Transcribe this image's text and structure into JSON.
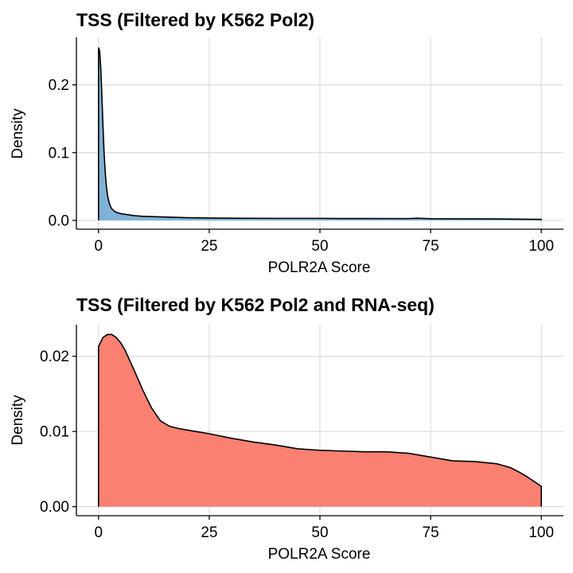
{
  "chart_data": [
    {
      "type": "area",
      "title": "TSS (Filtered by K562 Pol2)",
      "xlabel": "POLR2A Score",
      "ylabel": "Density",
      "xlim": [
        -5,
        105
      ],
      "ylim": [
        -0.013,
        0.27
      ],
      "xticks": [
        0,
        25,
        50,
        75,
        100
      ],
      "xtick_labels": [
        "0",
        "25",
        "50",
        "75",
        "100"
      ],
      "yticks": [
        0.0,
        0.1,
        0.2
      ],
      "ytick_labels": [
        "0.0",
        "0.1",
        "0.2"
      ],
      "grid": true,
      "fill_color": "#7FB2D6",
      "series": [
        {
          "x": [
            0,
            0.25,
            0.5,
            0.75,
            1,
            1.25,
            1.5,
            1.75,
            2,
            2.25,
            2.5,
            2.75,
            3,
            3.5,
            4,
            5,
            6,
            8,
            10,
            15,
            20,
            25,
            30,
            40,
            50,
            55,
            60,
            70,
            72,
            75,
            80,
            90,
            100
          ],
          "y": [
            0.255,
            0.25,
            0.225,
            0.185,
            0.14,
            0.1,
            0.072,
            0.052,
            0.038,
            0.03,
            0.024,
            0.02,
            0.017,
            0.014,
            0.012,
            0.01,
            0.009,
            0.007,
            0.006,
            0.005,
            0.004,
            0.0035,
            0.0032,
            0.003,
            0.003,
            0.0028,
            0.0028,
            0.0027,
            0.0032,
            0.0025,
            0.0023,
            0.0022,
            0.0015
          ]
        }
      ]
    },
    {
      "type": "area",
      "title": "TSS (Filtered by K562 Pol2 and RNA-seq)",
      "xlabel": "POLR2A Score",
      "ylabel": "Density",
      "xlim": [
        -5,
        105
      ],
      "ylim": [
        -0.0012,
        0.0242
      ],
      "xticks": [
        0,
        25,
        50,
        75,
        100
      ],
      "xtick_labels": [
        "0",
        "25",
        "50",
        "75",
        "100"
      ],
      "yticks": [
        0.0,
        0.01,
        0.02
      ],
      "ytick_labels": [
        "0.00",
        "0.01",
        "0.02"
      ],
      "grid": true,
      "fill_color": "#FA8072",
      "series": [
        {
          "x": [
            0,
            1,
            2,
            3,
            4,
            5,
            6,
            8,
            10,
            12,
            14,
            16,
            18,
            20,
            25,
            30,
            35,
            40,
            45,
            50,
            55,
            60,
            65,
            70,
            75,
            80,
            85,
            90,
            93,
            95,
            97,
            100
          ],
          "y": [
            0.0213,
            0.0225,
            0.0229,
            0.0229,
            0.0225,
            0.0218,
            0.0208,
            0.0182,
            0.0155,
            0.0131,
            0.0114,
            0.0107,
            0.0104,
            0.0102,
            0.0097,
            0.0091,
            0.0086,
            0.0082,
            0.0077,
            0.0075,
            0.0074,
            0.0073,
            0.0073,
            0.0071,
            0.0066,
            0.0061,
            0.006,
            0.0057,
            0.0052,
            0.0046,
            0.0039,
            0.0027
          ]
        }
      ]
    }
  ]
}
